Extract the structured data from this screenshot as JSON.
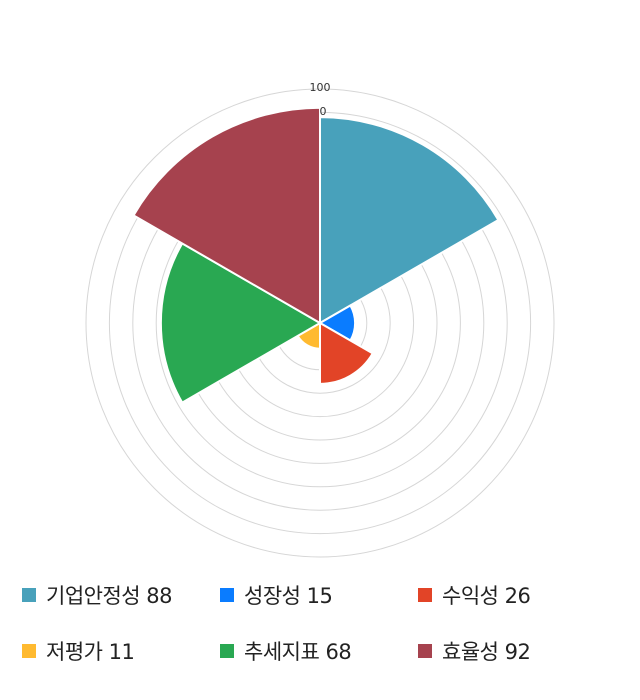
{
  "chart_data": {
    "type": "polar-area",
    "categories": [
      "기업안정성",
      "성장성",
      "수익성",
      "저평가",
      "추세지표",
      "효율성"
    ],
    "values": [
      88,
      15,
      26,
      11,
      68,
      92
    ],
    "colors": [
      "#48a1bb",
      "#0a7cff",
      "#e24427",
      "#ffba30",
      "#29a852",
      "#a6424e"
    ],
    "rlim": [
      0,
      100
    ],
    "tick_labels": [
      "100",
      "0"
    ],
    "grid": true,
    "legend_position": "bottom"
  }
}
